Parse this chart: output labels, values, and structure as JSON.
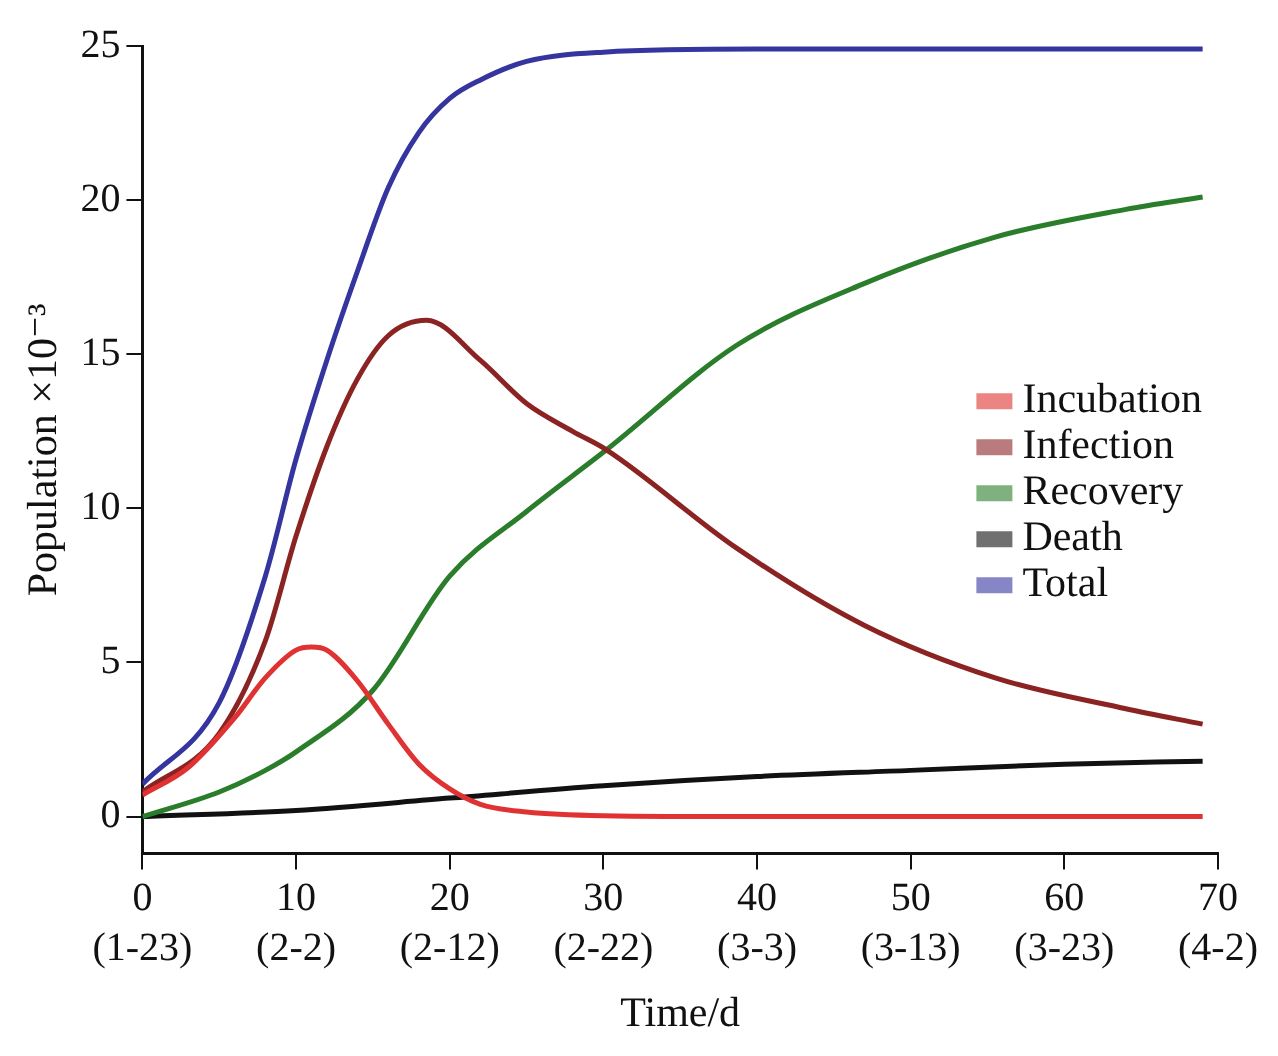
{
  "chart_data": {
    "type": "line",
    "xlabel": "Time/d",
    "ylabel": "Population ×10⁻³",
    "xlim": [
      0,
      70
    ],
    "ylim": [
      -1.2,
      25
    ],
    "xticks": [
      0,
      10,
      20,
      30,
      40,
      50,
      60,
      70
    ],
    "annotations": [
      "(1-23)",
      "(2-2)",
      "(2-12)",
      "(2-22)",
      "(3-3)",
      "(3-13)",
      "(3-23)",
      "(4-2)"
    ],
    "yticks": [
      0,
      5,
      10,
      15,
      20,
      25
    ],
    "grid": false,
    "legend": "right",
    "marker": "none",
    "line_style": "solid",
    "series": [
      {
        "name": "Incubation",
        "color": "#e03232",
        "x": [
          0,
          3,
          6,
          8,
          10,
          11,
          12,
          14,
          16,
          18,
          20,
          22,
          25,
          30,
          40,
          50,
          60,
          69
        ],
        "values": [
          0.7,
          1.6,
          3.2,
          4.5,
          5.4,
          5.5,
          5.4,
          4.4,
          3.0,
          1.7,
          0.9,
          0.4,
          0.15,
          0.03,
          0,
          0,
          0,
          0
        ]
      },
      {
        "name": "Infection",
        "color": "#8b2323",
        "x": [
          0,
          5,
          8,
          10,
          12,
          14,
          16,
          18.5,
          22,
          25,
          28,
          30.2,
          38.7,
          47,
          55.5,
          64,
          69
        ],
        "values": [
          0.8,
          2.7,
          5.7,
          9.1,
          12.0,
          14.2,
          15.6,
          16.1,
          14.8,
          13.4,
          12.5,
          11.9,
          8.7,
          6.2,
          4.5,
          3.5,
          3.0
        ]
      },
      {
        "name": "Recovery",
        "color": "#2a7d2a",
        "x": [
          0,
          5,
          8,
          10,
          15,
          20,
          25,
          30.2,
          38.7,
          47,
          55.5,
          64,
          69
        ],
        "values": [
          0,
          0.8,
          1.5,
          2.1,
          4.1,
          7.8,
          9.9,
          11.9,
          15.3,
          17.3,
          18.8,
          19.7,
          20.1
        ]
      },
      {
        "name": "Death",
        "color": "#111111",
        "x": [
          0,
          10,
          20,
          30,
          40,
          50,
          60,
          69
        ],
        "values": [
          0,
          0.2,
          0.6,
          1.0,
          1.3,
          1.5,
          1.7,
          1.8
        ]
      },
      {
        "name": "Total",
        "color": "#3535a0",
        "x": [
          0,
          5,
          8,
          10,
          12,
          14,
          16,
          18,
          20,
          22,
          25,
          30,
          40,
          50,
          60,
          69
        ],
        "values": [
          1.05,
          3.7,
          7.8,
          11.6,
          14.8,
          17.7,
          20.4,
          22.2,
          23.3,
          23.9,
          24.5,
          24.8,
          24.9,
          24.9,
          24.9,
          24.9
        ]
      }
    ]
  }
}
